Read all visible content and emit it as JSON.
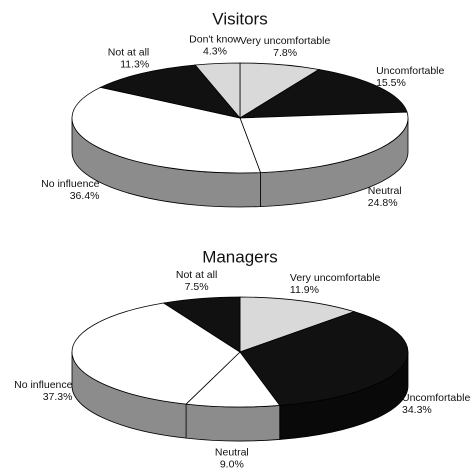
{
  "chart_data": [
    {
      "type": "pie3d",
      "title": "Visitors",
      "categories": [
        "Very uncomfortable",
        "Uncomfortable",
        "Neutral",
        "No influence",
        "Not at all",
        "Don't know"
      ],
      "values": [
        7.8,
        15.5,
        24.8,
        36.4,
        11.3,
        4.3
      ],
      "value_labels": [
        "7.8%",
        "15.5%",
        "24.8%",
        "36.4%",
        "11.3%",
        "4.3%"
      ],
      "colors": [
        "#d9d9d9",
        "#111111",
        "#ffffff",
        "#ffffff",
        "#111111",
        "#d9d9d9"
      ]
    },
    {
      "type": "pie3d",
      "title": "Managers",
      "categories": [
        "Very uncomfortable",
        "Uncomfortable",
        "Neutral",
        "No influence",
        "Not at all"
      ],
      "values": [
        11.9,
        34.3,
        9.0,
        37.3,
        7.5
      ],
      "value_labels": [
        "11.9%",
        "34.3%",
        "9.0%",
        "37.3%",
        "7.5%"
      ],
      "colors": [
        "#d9d9d9",
        "#111111",
        "#ffffff",
        "#ffffff",
        "#111111"
      ]
    }
  ]
}
